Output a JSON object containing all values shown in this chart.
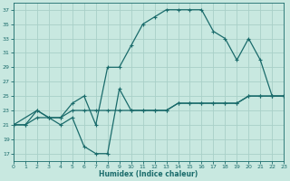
{
  "xlabel": "Humidex (Indice chaleur)",
  "xlim": [
    0,
    23
  ],
  "ylim": [
    16,
    38
  ],
  "yticks": [
    17,
    19,
    21,
    23,
    25,
    27,
    29,
    31,
    33,
    35,
    37
  ],
  "xticks": [
    0,
    1,
    2,
    3,
    4,
    5,
    6,
    7,
    8,
    9,
    10,
    11,
    12,
    13,
    14,
    15,
    16,
    17,
    18,
    19,
    20,
    21,
    22,
    23
  ],
  "bg_color": "#c8e8e0",
  "grid_color": "#a8d0c8",
  "line_color": "#1a6b6b",
  "line1_x": [
    0,
    1,
    2,
    3,
    4,
    5,
    6,
    7,
    8,
    9,
    10,
    11,
    12,
    13,
    14,
    15,
    16,
    17,
    18,
    19,
    20,
    21,
    22,
    23
  ],
  "line1_y": [
    21,
    21,
    22,
    22,
    22,
    23,
    23,
    23,
    23,
    23,
    23,
    23,
    23,
    23,
    24,
    24,
    24,
    24,
    24,
    24,
    25,
    25,
    25,
    25
  ],
  "line2_x": [
    0,
    1,
    2,
    3,
    4,
    5,
    6,
    7,
    8,
    9,
    10,
    11,
    12,
    13,
    14,
    15,
    16,
    17,
    18,
    19,
    20,
    21,
    22,
    23
  ],
  "line2_y": [
    21,
    21,
    23,
    22,
    21,
    22,
    18,
    17,
    17,
    26,
    23,
    23,
    23,
    23,
    24,
    24,
    24,
    24,
    24,
    24,
    25,
    25,
    25,
    25
  ],
  "line3_x": [
    0,
    2,
    3,
    4,
    5,
    6,
    7,
    8,
    9,
    10,
    11,
    12,
    13,
    14,
    15,
    16,
    17,
    18,
    19,
    20,
    21,
    22,
    23
  ],
  "line3_y": [
    21,
    23,
    22,
    22,
    24,
    25,
    21,
    29,
    29,
    32,
    35,
    36,
    37,
    37,
    37,
    37,
    34,
    33,
    30,
    33,
    30,
    25,
    25
  ]
}
